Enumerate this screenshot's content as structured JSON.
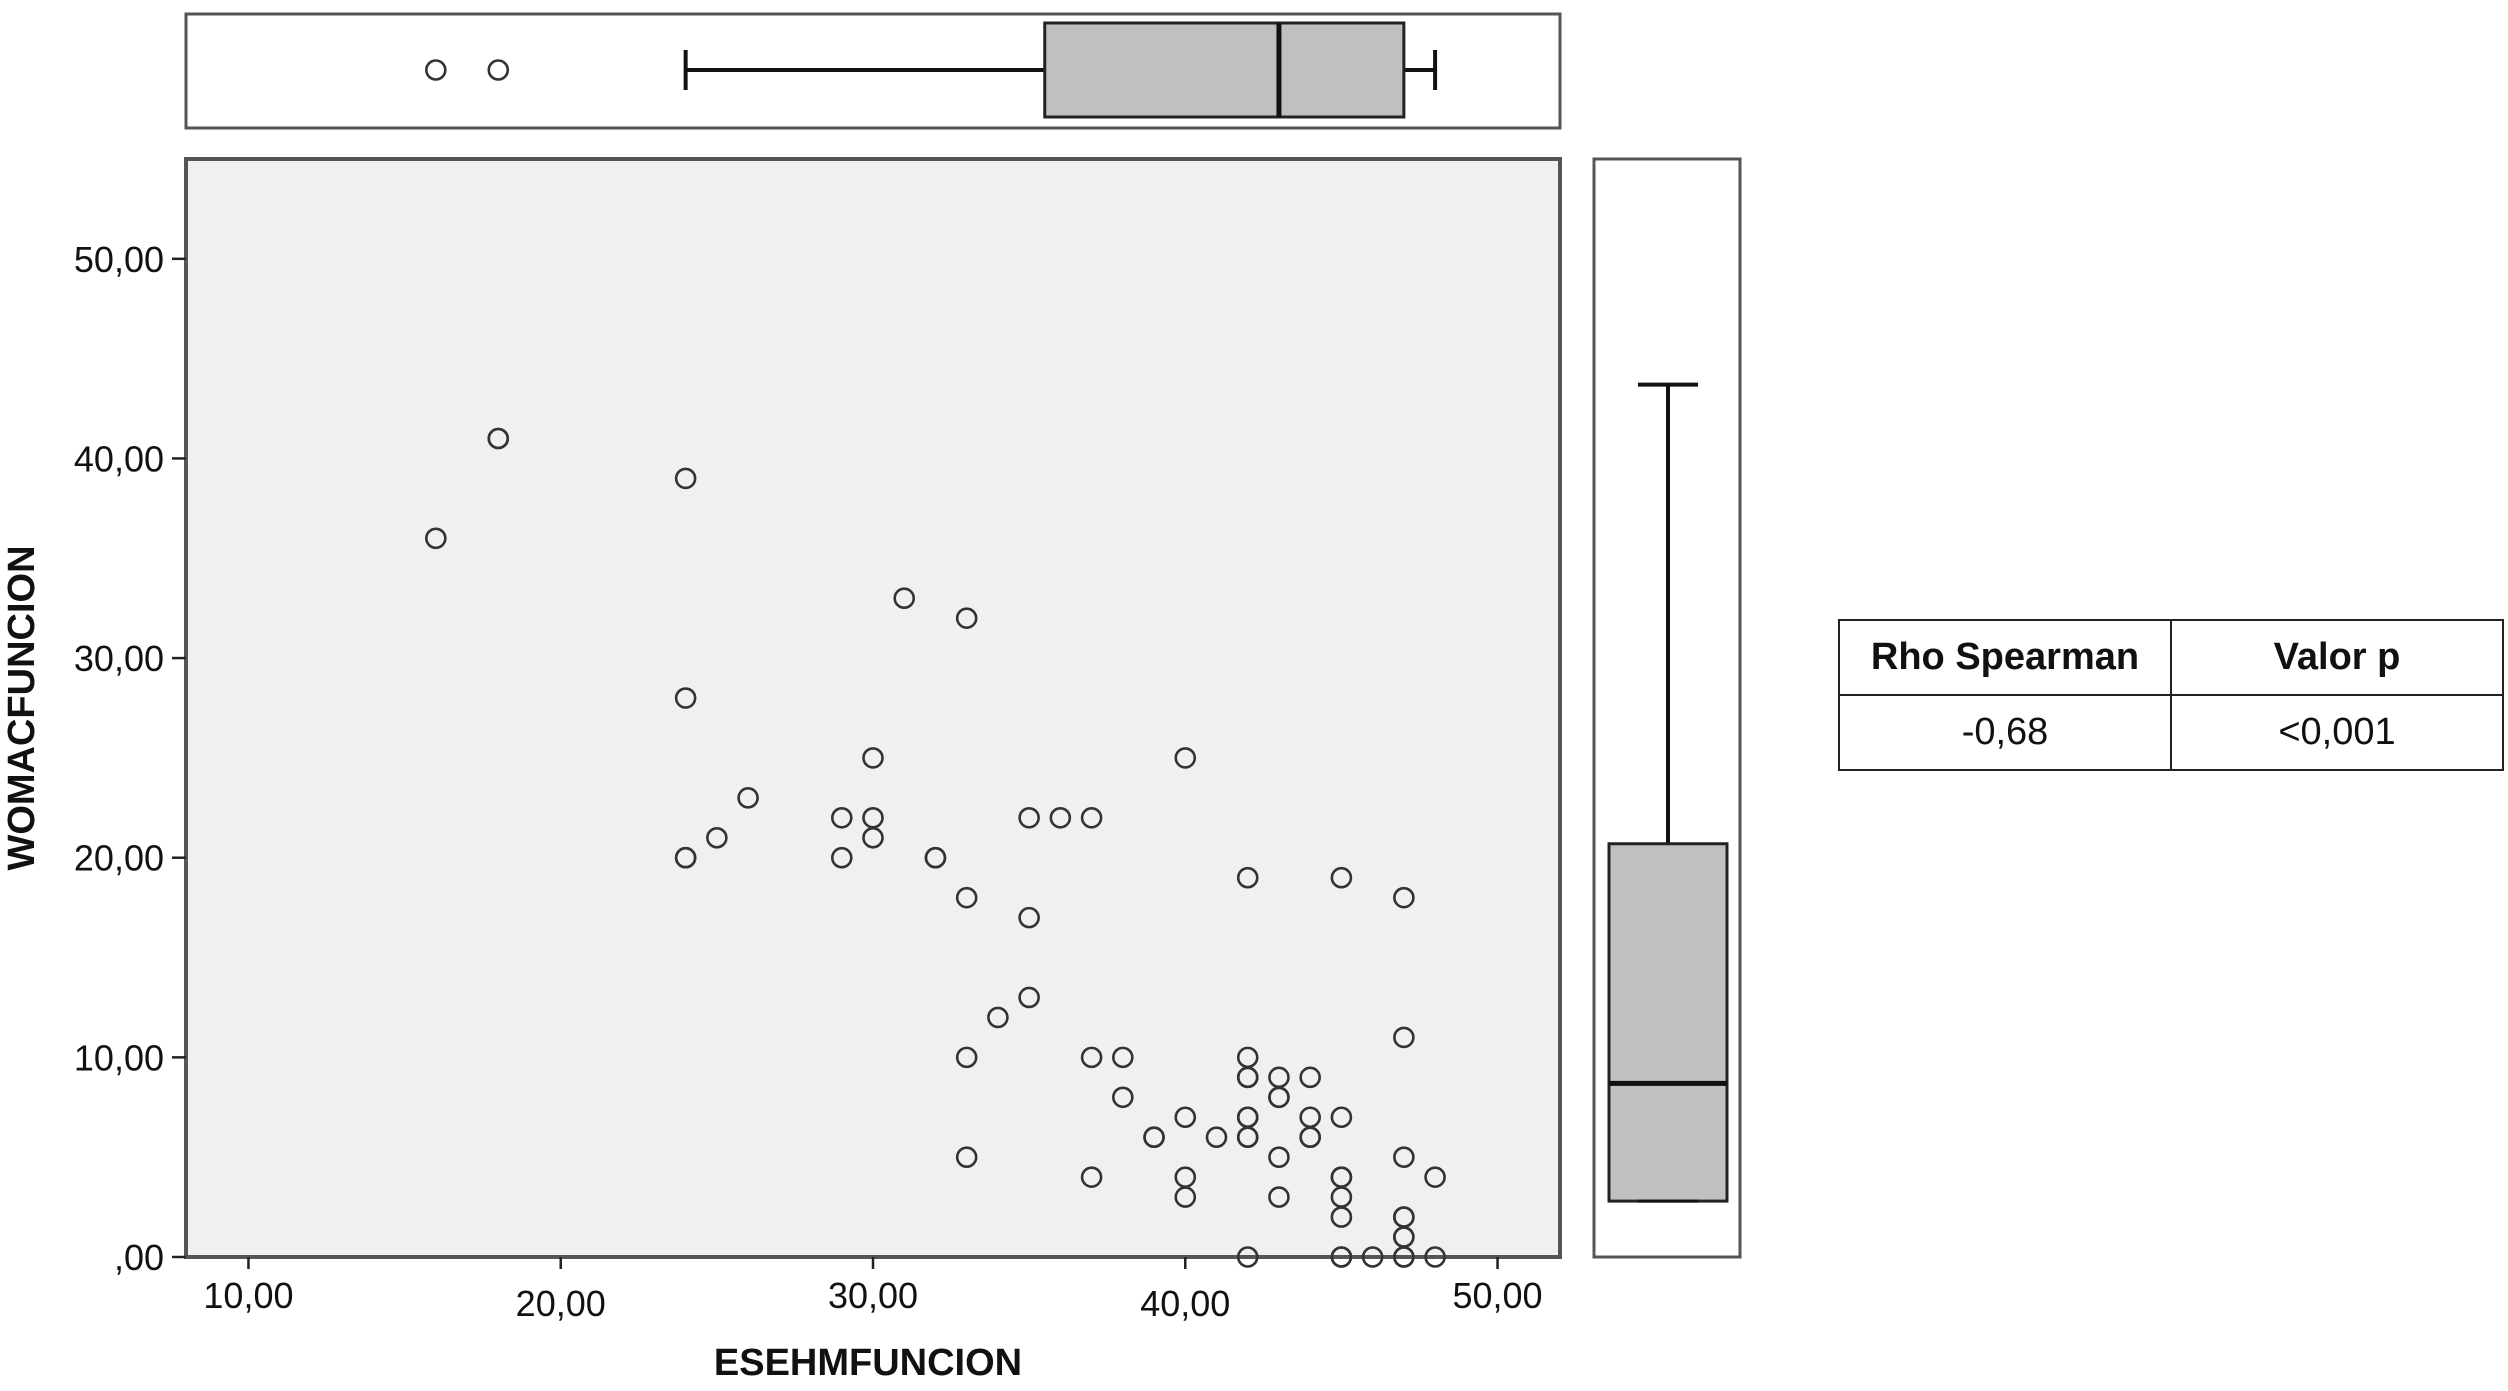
{
  "chart_data": {
    "type": "scatter",
    "xlabel": "ESEHMFUNCION",
    "ylabel": "WOMACFUNCION",
    "xlim": [
      8,
      52
    ],
    "ylim": [
      0,
      55
    ],
    "x_ticks": [
      10,
      20,
      30,
      40,
      50
    ],
    "y_ticks": [
      0,
      10,
      20,
      30,
      40,
      50
    ],
    "x_tick_labels": [
      "10,00",
      "20,00",
      "30,00",
      "40,00",
      "50,00"
    ],
    "y_tick_labels": [
      ",00",
      "10,00",
      "20,00",
      "30,00",
      "40,00",
      "50,00"
    ],
    "grid": false,
    "plot_background": "#f0f0f0",
    "marker_color": "#333333",
    "points": [
      [
        16,
        36
      ],
      [
        18,
        41
      ],
      [
        18,
        41
      ],
      [
        24,
        39
      ],
      [
        24,
        28
      ],
      [
        24,
        20
      ],
      [
        24,
        20
      ],
      [
        25,
        21
      ],
      [
        26,
        23
      ],
      [
        29,
        22
      ],
      [
        29,
        20
      ],
      [
        30,
        25
      ],
      [
        30,
        22
      ],
      [
        30,
        21
      ],
      [
        31,
        33
      ],
      [
        32,
        20
      ],
      [
        32,
        20
      ],
      [
        33,
        32
      ],
      [
        33,
        18
      ],
      [
        33,
        10
      ],
      [
        33,
        5
      ],
      [
        34,
        12
      ],
      [
        35,
        22
      ],
      [
        35,
        17
      ],
      [
        35,
        13
      ],
      [
        36,
        22
      ],
      [
        37,
        22
      ],
      [
        37,
        10
      ],
      [
        37,
        4
      ],
      [
        38,
        10
      ],
      [
        38,
        8
      ],
      [
        39,
        6
      ],
      [
        39,
        6
      ],
      [
        40,
        25
      ],
      [
        40,
        7
      ],
      [
        40,
        4
      ],
      [
        40,
        3
      ],
      [
        41,
        6
      ],
      [
        42,
        19
      ],
      [
        42,
        10
      ],
      [
        42,
        9
      ],
      [
        42,
        9
      ],
      [
        42,
        7
      ],
      [
        42,
        7
      ],
      [
        42,
        6
      ],
      [
        42,
        6
      ],
      [
        42,
        0
      ],
      [
        43,
        9
      ],
      [
        43,
        8
      ],
      [
        43,
        8
      ],
      [
        43,
        5
      ],
      [
        43,
        3
      ],
      [
        44,
        9
      ],
      [
        44,
        7
      ],
      [
        44,
        6
      ],
      [
        44,
        6
      ],
      [
        45,
        19
      ],
      [
        45,
        7
      ],
      [
        45,
        4
      ],
      [
        45,
        4
      ],
      [
        45,
        3
      ],
      [
        45,
        2
      ],
      [
        45,
        0
      ],
      [
        45,
        0
      ],
      [
        46,
        0
      ],
      [
        47,
        18
      ],
      [
        47,
        11
      ],
      [
        47,
        5
      ],
      [
        47,
        2
      ],
      [
        47,
        2
      ],
      [
        47,
        1
      ],
      [
        47,
        1
      ],
      [
        47,
        0
      ],
      [
        47,
        0
      ],
      [
        48,
        4
      ],
      [
        48,
        0
      ]
    ],
    "x_boxplot": {
      "whisker_low": 24,
      "q1": 35.5,
      "median": 43,
      "q3": 47,
      "whisker_high": 48,
      "outliers": [
        16,
        18
      ]
    },
    "y_boxplot": {
      "whisker_low": 2.8,
      "q1": 2.8,
      "median": 8.7,
      "q3": 20.7,
      "whisker_high": 43.7,
      "outliers": []
    },
    "box_fill": "#c0c0c0"
  },
  "stats_table": {
    "headers": [
      "Rho Spearman",
      "Valor p"
    ],
    "values": [
      "-0,68",
      "<0,001"
    ]
  }
}
